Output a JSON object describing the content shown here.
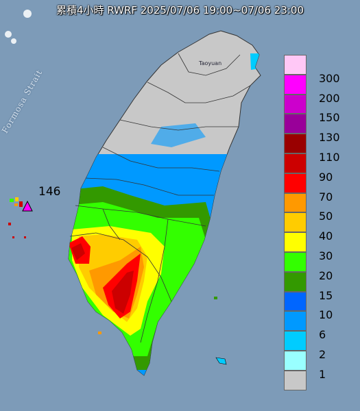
{
  "title": "累積4小時 RWRF 2025/07/06 19:00~07/06 23:00",
  "max_value_label": "146",
  "strait_label": "Formosa Strait",
  "city_label": "Taoyuan",
  "legend": [
    {
      "label": "300",
      "color": "#ffc8f6"
    },
    {
      "label": "200",
      "color": "#ff00ff"
    },
    {
      "label": "150",
      "color": "#cc00cc"
    },
    {
      "label": "130",
      "color": "#990099"
    },
    {
      "label": "110",
      "color": "#990000"
    },
    {
      "label": "90",
      "color": "#cc0000"
    },
    {
      "label": "70",
      "color": "#ff0000"
    },
    {
      "label": "50",
      "color": "#ff9900"
    },
    {
      "label": "40",
      "color": "#ffcc00"
    },
    {
      "label": "30",
      "color": "#ffff00"
    },
    {
      "label": "20",
      "color": "#33ff00"
    },
    {
      "label": "15",
      "color": "#339900"
    },
    {
      "label": "10",
      "color": "#0066ff"
    },
    {
      "label": "6",
      "color": "#0099ff"
    },
    {
      "label": "2",
      "color": "#00ccff"
    },
    {
      "label": "1",
      "color": "#99ffff"
    },
    {
      "label": "",
      "color": "#c8c8c8"
    }
  ]
}
